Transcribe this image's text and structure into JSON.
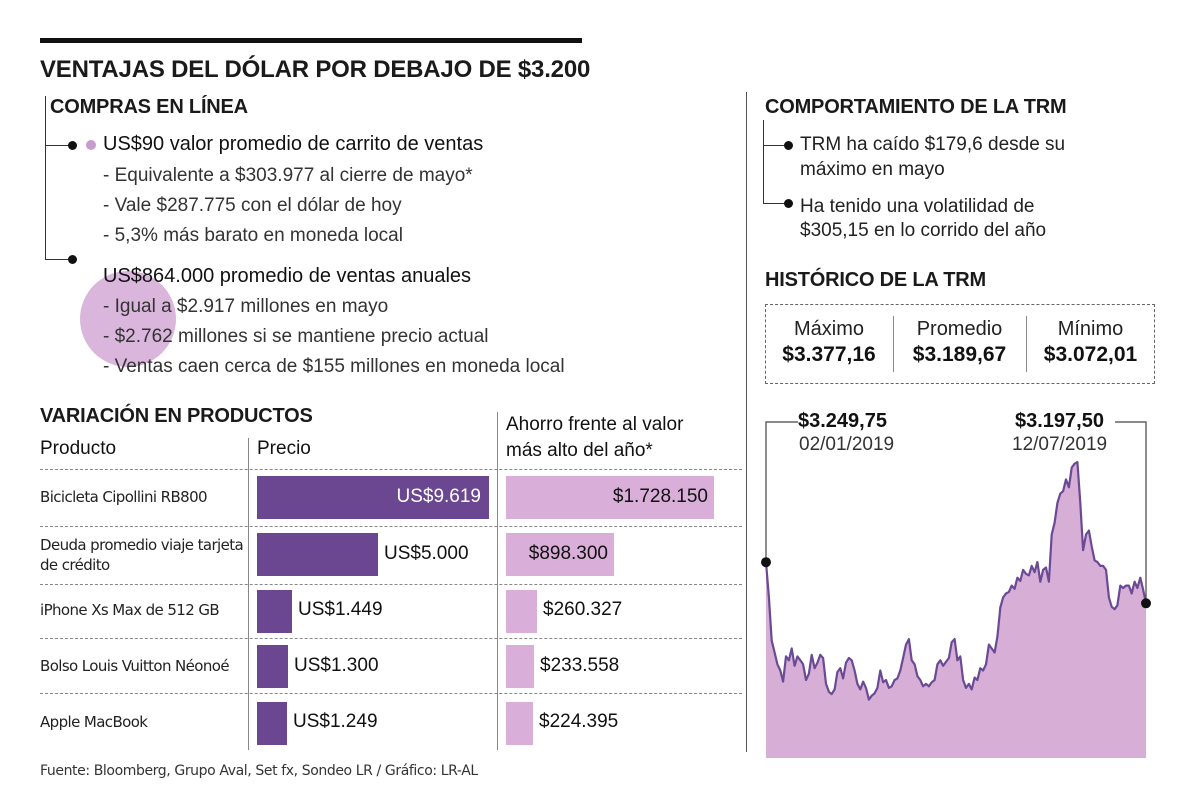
{
  "title": "VENTAJAS DEL DÓLAR POR DEBAJO DE $3.200",
  "compras": {
    "title": "COMPRAS EN LÍNEA",
    "item1": {
      "head": "US$90 valor promedio de carrito de ventas",
      "lines": [
        "- Equivalente a $303.977 al cierre de mayo*",
        "- Vale $287.775 con el dólar de hoy",
        "- 5,3% más barato en moneda local"
      ]
    },
    "item2": {
      "head": "US$864.000 promedio de ventas anuales",
      "lines": [
        "- Igual a $2.917 millones en mayo",
        "- $2.762 millones si se mantiene precio actual",
        "- Ventas caen cerca de $155 millones en moneda local"
      ]
    }
  },
  "variacion": {
    "title": "VARIACIÓN EN PRODUCTOS",
    "col_producto": "Producto",
    "col_precio": "Precio",
    "col_ahorro_1": "Ahorro frente al valor",
    "col_ahorro_2": "más alto del año*",
    "rows": [
      {
        "label": "Bicicleta Cipollini RB800",
        "price_label": "US$9.619",
        "saving_label": "$1.728.150"
      },
      {
        "label": "Deuda promedio viaje tarjeta de crédito",
        "price_label": "US$5.000",
        "saving_label": "$898.300"
      },
      {
        "label": "iPhone Xs Max de 512 GB",
        "price_label": "US$1.449",
        "saving_label": "$260.327"
      },
      {
        "label": "Bolso Louis Vuitton Néonoé",
        "price_label": "US$1.300",
        "saving_label": "$233.558"
      },
      {
        "label": "Apple MacBook",
        "price_label": "US$1.249",
        "saving_label": "$224.395"
      }
    ]
  },
  "comportamiento": {
    "title": "COMPORTAMIENTO DE LA TRM",
    "item1": [
      "TRM ha caído $179,6 desde su",
      "máximo en mayo"
    ],
    "item2": [
      "Ha tenido una volatilidad de",
      "$305,15 en lo corrido del año"
    ]
  },
  "historico": {
    "title": "HISTÓRICO DE LA TRM",
    "stats": [
      {
        "label": "Máximo",
        "value": "$3.377,16"
      },
      {
        "label": "Promedio",
        "value": "$3.189,67"
      },
      {
        "label": "Mínimo",
        "value": "$3.072,01"
      }
    ],
    "start": {
      "value": "$3.249,75",
      "date": "02/01/2019"
    },
    "end": {
      "value": "$3.197,50",
      "date": "12/07/2019"
    }
  },
  "footer": "Fuente: Bloomberg, Grupo Aval, Set fx, Sondeo LR / Gráfico: LR-AL",
  "colors": {
    "bar_dark": "#6c4791",
    "bar_light": "#d9aed9",
    "area_fill": "#d6aed6",
    "area_line": "#6a4a95"
  },
  "chart_data": [
    {
      "type": "bar",
      "categories": [
        "Bicicleta Cipollini RB800",
        "Deuda promedio viaje tarjeta de crédito",
        "iPhone Xs Max de 512 GB",
        "Bolso Louis Vuitton Néonoé",
        "Apple MacBook"
      ],
      "series": [
        {
          "name": "Precio",
          "values": [
            9619,
            5000,
            1449,
            1300,
            1249
          ]
        },
        {
          "name": "Ahorro frente al valor más alto del año*",
          "values": [
            1728150,
            898300,
            260327,
            233558,
            224395
          ]
        }
      ]
    },
    {
      "type": "area",
      "ylim": [
        3072.01,
        3377.16
      ],
      "x_start": "02/01/2019",
      "x_end": "12/07/2019",
      "values": [
        3249.75,
        3205,
        3150,
        3135,
        3120,
        3112,
        3098,
        3130,
        3125,
        3140,
        3118,
        3130,
        3125,
        3120,
        3100,
        3108,
        3132,
        3115,
        3122,
        3132,
        3128,
        3095,
        3085,
        3082,
        3088,
        3110,
        3115,
        3102,
        3122,
        3128,
        3125,
        3112,
        3095,
        3088,
        3098,
        3090,
        3075,
        3080,
        3083,
        3090,
        3112,
        3097,
        3100,
        3090,
        3092,
        3100,
        3102,
        3112,
        3128,
        3145,
        3152,
        3125,
        3120,
        3105,
        3100,
        3092,
        3095,
        3092,
        3097,
        3100,
        3120,
        3125,
        3118,
        3123,
        3128,
        3148,
        3152,
        3125,
        3130,
        3100,
        3090,
        3095,
        3088,
        3103,
        3100,
        3115,
        3112,
        3120,
        3145,
        3140,
        3135,
        3155,
        3192,
        3205,
        3210,
        3212,
        3220,
        3216,
        3230,
        3226,
        3240,
        3235,
        3233,
        3245,
        3237,
        3250,
        3225,
        3240,
        3243,
        3225,
        3285,
        3300,
        3325,
        3337,
        3340,
        3355,
        3345,
        3370,
        3375,
        3377,
        3325,
        3265,
        3285,
        3290,
        3270,
        3252,
        3250,
        3245,
        3245,
        3240,
        3205,
        3193,
        3190,
        3195,
        3220,
        3217,
        3220,
        3220,
        3210,
        3225,
        3217,
        3230,
        3215,
        3197.5
      ]
    }
  ]
}
